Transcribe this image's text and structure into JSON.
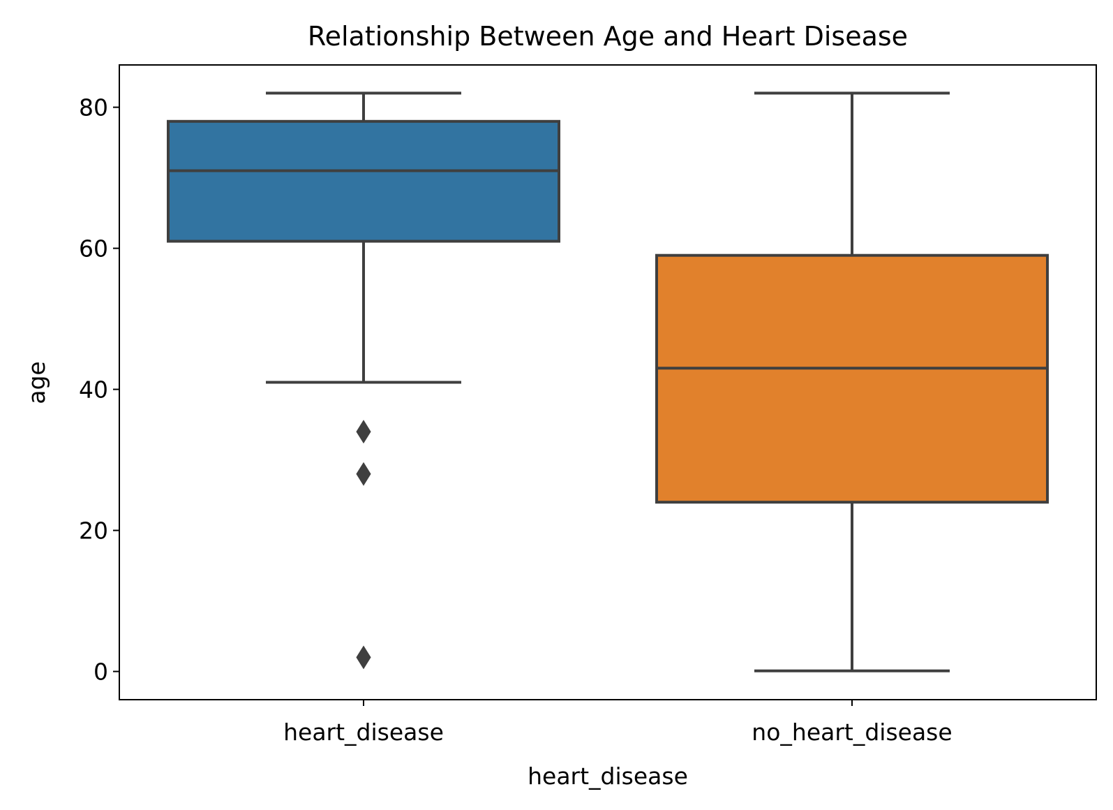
{
  "chart_data": {
    "type": "box",
    "title": "Relationship Between Age and Heart Disease",
    "xlabel": "heart_disease",
    "ylabel": "age",
    "ylim": [
      -4,
      86
    ],
    "yticks": [
      0,
      20,
      40,
      60,
      80
    ],
    "grid": false,
    "categories": [
      "heart_disease",
      "no_heart_disease"
    ],
    "boxes": [
      {
        "category": "heart_disease",
        "color": "#3274a1",
        "whisker_low": 41,
        "q1": 61,
        "median": 71,
        "q3": 78,
        "whisker_high": 82,
        "outliers": [
          34,
          28,
          2
        ]
      },
      {
        "category": "no_heart_disease",
        "color": "#e1812c",
        "whisker_low": 0.08,
        "q1": 24,
        "median": 43,
        "q3": 59,
        "whisker_high": 82,
        "outliers": []
      }
    ],
    "line_color": "#3f3f3f"
  }
}
